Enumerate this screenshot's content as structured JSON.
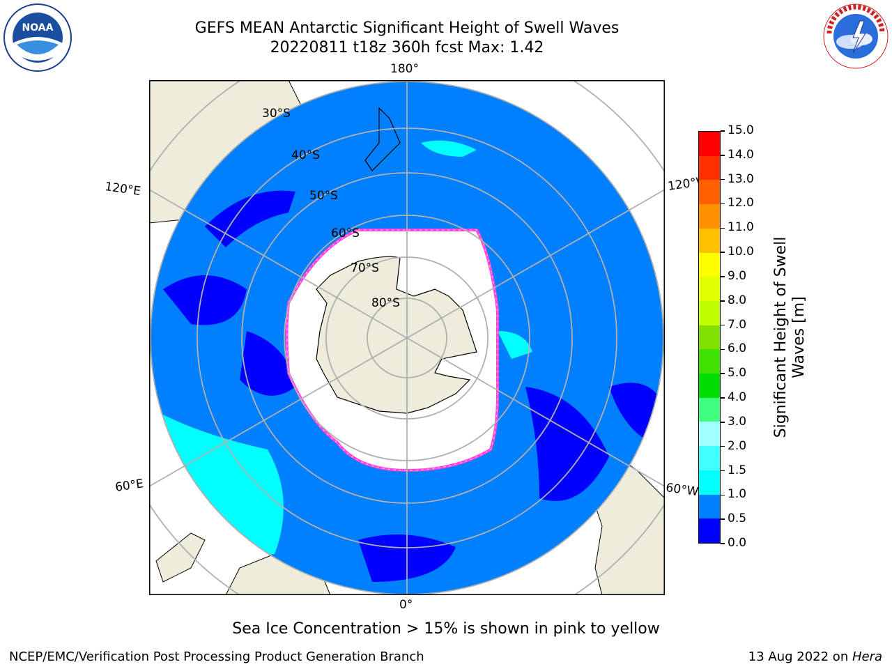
{
  "header": {
    "title_line1": "GEFS MEAN Antarctic Significant Height of Swell Waves",
    "title_line2": "20220811 t18z 360h fcst   Max: 1.42"
  },
  "logos": {
    "left_text": "NOAA",
    "left_ring_text": "NATIONAL OCEANIC AND ATMOSPHERIC ADMINISTRATION",
    "left_ring_bottom": "U.S. DEPARTMENT OF COMMERCE",
    "right_ring_text": "NATIONAL WEATHER SERVICE"
  },
  "map": {
    "projection": "south-polar-stereographic",
    "longitude_labels": {
      "top": "180°",
      "bottom": "0°",
      "upper_left": "120°E",
      "lower_left": "60°E",
      "upper_right": "120°W",
      "lower_right": "60°W"
    },
    "latitude_labels": [
      "30°S",
      "40°S",
      "50°S",
      "60°S",
      "70°S",
      "80°S"
    ],
    "colors": {
      "land": "#eeecdb",
      "ocean_base": "#0080ff",
      "ocean_low": "#0000ff",
      "ocean_mid": "#00ffff",
      "sea_ice": "#ffffff",
      "ice_edge": "#ff40ff",
      "ice_edge_inner": "#ffc040",
      "grid": "#b0b0b0"
    }
  },
  "colorbar": {
    "label": "Significant Height of Swell Waves [m]",
    "label_line1": "Significant Height of Swell",
    "label_line2": "Waves [m]",
    "ticks": [
      "0.0",
      "0.5",
      "1.0",
      "1.5",
      "2.0",
      "3.0",
      "4.0",
      "5.0",
      "6.0",
      "7.0",
      "8.0",
      "9.0",
      "10.0",
      "11.0",
      "12.0",
      "13.0",
      "14.0",
      "15.0"
    ],
    "colors": [
      "#0000ff",
      "#0080ff",
      "#00ffff",
      "#40ffff",
      "#a0ffff",
      "#40ff80",
      "#00dd00",
      "#40e000",
      "#80e000",
      "#c0ff00",
      "#e0ff00",
      "#ffff00",
      "#ffc000",
      "#ff9000",
      "#ff6000",
      "#ff3000",
      "#ff0000"
    ]
  },
  "caption": "Sea Ice Concentration > 15% is shown in pink to yellow",
  "footer": {
    "left": "NCEP/EMC/Verification Post Processing Product Generation Branch",
    "right_prefix": "13 Aug 2022 on ",
    "right_host": "Hera"
  }
}
